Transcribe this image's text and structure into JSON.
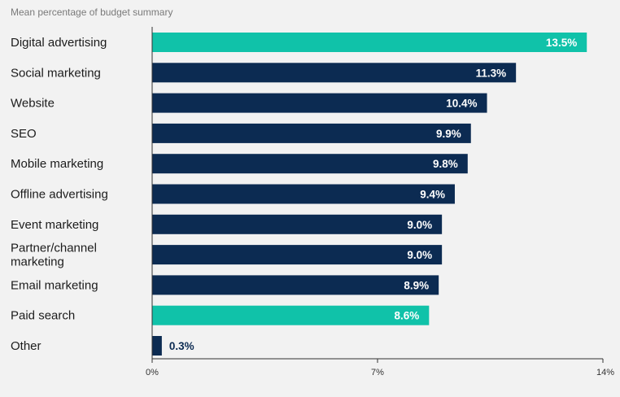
{
  "chart_data": {
    "type": "bar",
    "orientation": "horizontal",
    "title": "Mean percentage of budget summary",
    "categories": [
      "Digital advertising",
      "Social marketing",
      "Website",
      "SEO",
      "Mobile marketing",
      "Offline advertising",
      "Event marketing",
      "Partner/channel marketing",
      "Email marketing",
      "Paid search",
      "Other"
    ],
    "values": [
      13.5,
      11.3,
      10.4,
      9.9,
      9.8,
      9.4,
      9.0,
      9.0,
      8.9,
      8.6,
      0.3
    ],
    "value_labels": [
      "13.5%",
      "11.3%",
      "10.4%",
      "9.9%",
      "9.8%",
      "9.4%",
      "9.0%",
      "9.0%",
      "8.9%",
      "8.6%",
      "0.3%"
    ],
    "highlighted": [
      "Digital advertising",
      "Paid search"
    ],
    "xlim": [
      0,
      14
    ],
    "x_ticks": [
      0,
      7,
      14
    ],
    "x_tick_labels": [
      "0%",
      "7%",
      "14%"
    ],
    "xlabel": "",
    "ylabel": "",
    "grid": false,
    "colors": {
      "default_bar": "#0c2b52",
      "highlight_bar": "#10c2a9",
      "label_inside": "#ffffff",
      "label_outside": "#0c2b52",
      "axis": "#333333",
      "background": "#f2f2f2"
    }
  }
}
